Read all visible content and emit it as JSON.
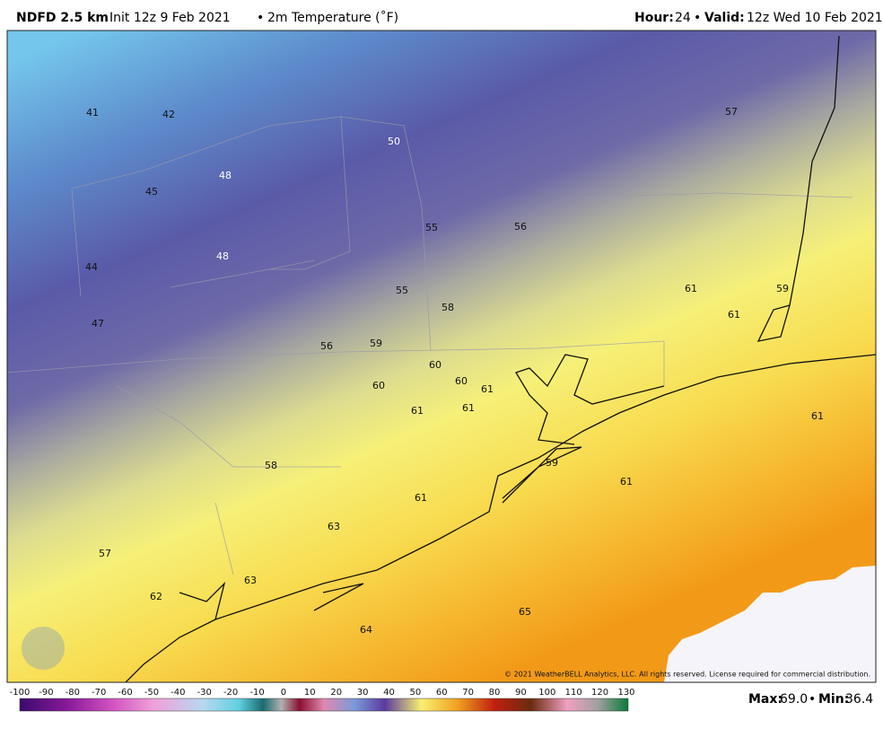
{
  "header": {
    "model": "NDFD 2.5 km",
    "init": "Init 12z 9 Feb 2021",
    "separator": "•",
    "field": "2m Temperature (˚F)",
    "hour_label": "Hour:",
    "hour": 24,
    "valid_label": "Valid:",
    "valid": "12z Wed 10 Feb 2021"
  },
  "map": {
    "labels": [
      41,
      42,
      50,
      57,
      48,
      45,
      55,
      56,
      44,
      48,
      55,
      58,
      61,
      59,
      61,
      47,
      56,
      59,
      60,
      60,
      61,
      60,
      61,
      61,
      61,
      58,
      59,
      61,
      61,
      63,
      57,
      63,
      62,
      65,
      64
    ],
    "copyright": "© 2021 WeatherBELL Analytics, LLC. All rights reserved. License required for commercial distribution."
  },
  "colorbar": {
    "ticks": [
      -100,
      -90,
      -80,
      -70,
      -60,
      -50,
      -40,
      -30,
      -20,
      -10,
      0,
      10,
      20,
      30,
      40,
      50,
      60,
      70,
      80,
      90,
      100,
      110,
      120,
      130
    ]
  },
  "stats": {
    "max_label": "Max:",
    "max": "69.0",
    "separator": "•",
    "min_label": "Min:",
    "min": "36.4"
  }
}
